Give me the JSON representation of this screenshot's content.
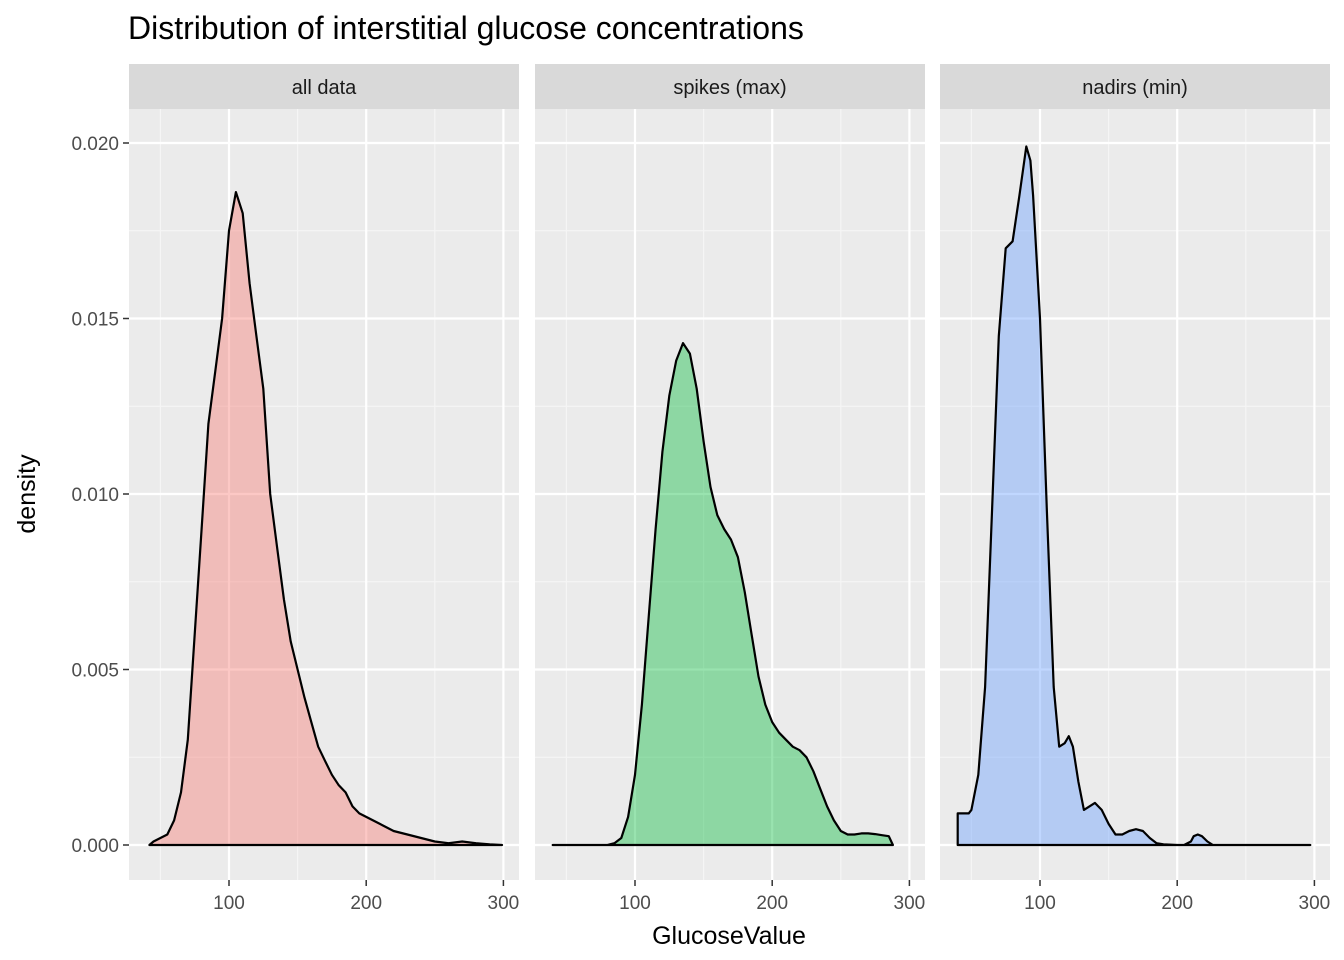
{
  "chart_data": {
    "type": "area",
    "title": "Distribution of interstitial glucose concentrations",
    "xlabel": "GlucoseValue",
    "ylabel": "density",
    "xlim": [
      40,
      300
    ],
    "ylim": [
      0,
      0.02
    ],
    "x_ticks": [
      100,
      200,
      300
    ],
    "x_tick_labels": [
      "100",
      "200",
      "300"
    ],
    "y_ticks": [
      0,
      0.005,
      0.01,
      0.015,
      0.02
    ],
    "y_tick_labels": [
      "0.000",
      "0.005",
      "0.010",
      "0.015",
      "0.020"
    ],
    "grid": true,
    "legend": "none",
    "facets": [
      {
        "label": "all data",
        "fill": "#F8766D",
        "points": [
          [
            42,
            0
          ],
          [
            45,
            0.0001
          ],
          [
            50,
            0.0002
          ],
          [
            55,
            0.0003
          ],
          [
            60,
            0.0007
          ],
          [
            65,
            0.0015
          ],
          [
            70,
            0.003
          ],
          [
            75,
            0.006
          ],
          [
            80,
            0.009
          ],
          [
            85,
            0.012
          ],
          [
            90,
            0.0135
          ],
          [
            95,
            0.015
          ],
          [
            100,
            0.0175
          ],
          [
            105,
            0.0186
          ],
          [
            110,
            0.018
          ],
          [
            115,
            0.016
          ],
          [
            120,
            0.0145
          ],
          [
            125,
            0.013
          ],
          [
            130,
            0.01
          ],
          [
            135,
            0.0085
          ],
          [
            140,
            0.007
          ],
          [
            145,
            0.0058
          ],
          [
            150,
            0.005
          ],
          [
            155,
            0.0042
          ],
          [
            160,
            0.0035
          ],
          [
            165,
            0.0028
          ],
          [
            170,
            0.0024
          ],
          [
            175,
            0.002
          ],
          [
            180,
            0.0017
          ],
          [
            185,
            0.0015
          ],
          [
            190,
            0.0011
          ],
          [
            195,
            0.0009
          ],
          [
            200,
            0.0008
          ],
          [
            210,
            0.0006
          ],
          [
            220,
            0.0004
          ],
          [
            230,
            0.0003
          ],
          [
            240,
            0.0002
          ],
          [
            250,
            0.0001
          ],
          [
            260,
            5e-05
          ],
          [
            270,
            0.0001
          ],
          [
            280,
            5e-05
          ],
          [
            290,
            2e-05
          ],
          [
            299,
            0
          ]
        ]
      },
      {
        "label": "spikes (max)",
        "fill": "#00BA38",
        "points": [
          [
            40,
            0
          ],
          [
            60,
            0
          ],
          [
            80,
            0
          ],
          [
            85,
            5e-05
          ],
          [
            90,
            0.0002
          ],
          [
            95,
            0.0008
          ],
          [
            100,
            0.002
          ],
          [
            105,
            0.004
          ],
          [
            110,
            0.0065
          ],
          [
            115,
            0.009
          ],
          [
            120,
            0.0112
          ],
          [
            125,
            0.0128
          ],
          [
            130,
            0.0138
          ],
          [
            135,
            0.0143
          ],
          [
            140,
            0.014
          ],
          [
            145,
            0.013
          ],
          [
            150,
            0.0115
          ],
          [
            155,
            0.0102
          ],
          [
            160,
            0.0094
          ],
          [
            165,
            0.009
          ],
          [
            170,
            0.0087
          ],
          [
            175,
            0.0082
          ],
          [
            180,
            0.0072
          ],
          [
            185,
            0.006
          ],
          [
            190,
            0.0048
          ],
          [
            195,
            0.004
          ],
          [
            200,
            0.0035
          ],
          [
            205,
            0.0032
          ],
          [
            210,
            0.003
          ],
          [
            215,
            0.0028
          ],
          [
            220,
            0.0027
          ],
          [
            225,
            0.0025
          ],
          [
            230,
            0.0021
          ],
          [
            235,
            0.0016
          ],
          [
            240,
            0.0011
          ],
          [
            245,
            0.0007
          ],
          [
            250,
            0.0004
          ],
          [
            255,
            0.0003
          ],
          [
            260,
            0.0003
          ],
          [
            265,
            0.00033
          ],
          [
            270,
            0.00033
          ],
          [
            275,
            0.00031
          ],
          [
            280,
            0.00028
          ],
          [
            285,
            0.00025
          ],
          [
            288,
            0
          ]
        ]
      },
      {
        "label": "nadirs (min)",
        "fill": "#619CFF",
        "points": [
          [
            40,
            0
          ],
          [
            40,
            0.0009
          ],
          [
            42,
            0.0009
          ],
          [
            45,
            0.0009
          ],
          [
            48,
            0.0009
          ],
          [
            50,
            0.001
          ],
          [
            55,
            0.002
          ],
          [
            60,
            0.0045
          ],
          [
            65,
            0.0095
          ],
          [
            70,
            0.0145
          ],
          [
            75,
            0.017
          ],
          [
            80,
            0.0172
          ],
          [
            85,
            0.0185
          ],
          [
            90,
            0.0199
          ],
          [
            93,
            0.0195
          ],
          [
            95,
            0.0185
          ],
          [
            100,
            0.015
          ],
          [
            105,
            0.0095
          ],
          [
            110,
            0.0045
          ],
          [
            114,
            0.0028
          ],
          [
            118,
            0.0029
          ],
          [
            121,
            0.0031
          ],
          [
            124,
            0.0028
          ],
          [
            128,
            0.0018
          ],
          [
            132,
            0.001
          ],
          [
            136,
            0.0011
          ],
          [
            140,
            0.0012
          ],
          [
            145,
            0.001
          ],
          [
            150,
            0.0006
          ],
          [
            155,
            0.0003
          ],
          [
            160,
            0.0003
          ],
          [
            165,
            0.0004
          ],
          [
            170,
            0.00045
          ],
          [
            175,
            0.0004
          ],
          [
            180,
            0.0002
          ],
          [
            185,
            5e-05
          ],
          [
            190,
            2e-05
          ],
          [
            200,
            0
          ],
          [
            205,
            0
          ],
          [
            210,
            0.0001
          ],
          [
            212,
            0.00025
          ],
          [
            215,
            0.0003
          ],
          [
            218,
            0.00025
          ],
          [
            222,
            0.0001
          ],
          [
            226,
            0
          ],
          [
            240,
            0
          ],
          [
            255,
            0
          ],
          [
            297,
            0
          ]
        ]
      }
    ]
  }
}
